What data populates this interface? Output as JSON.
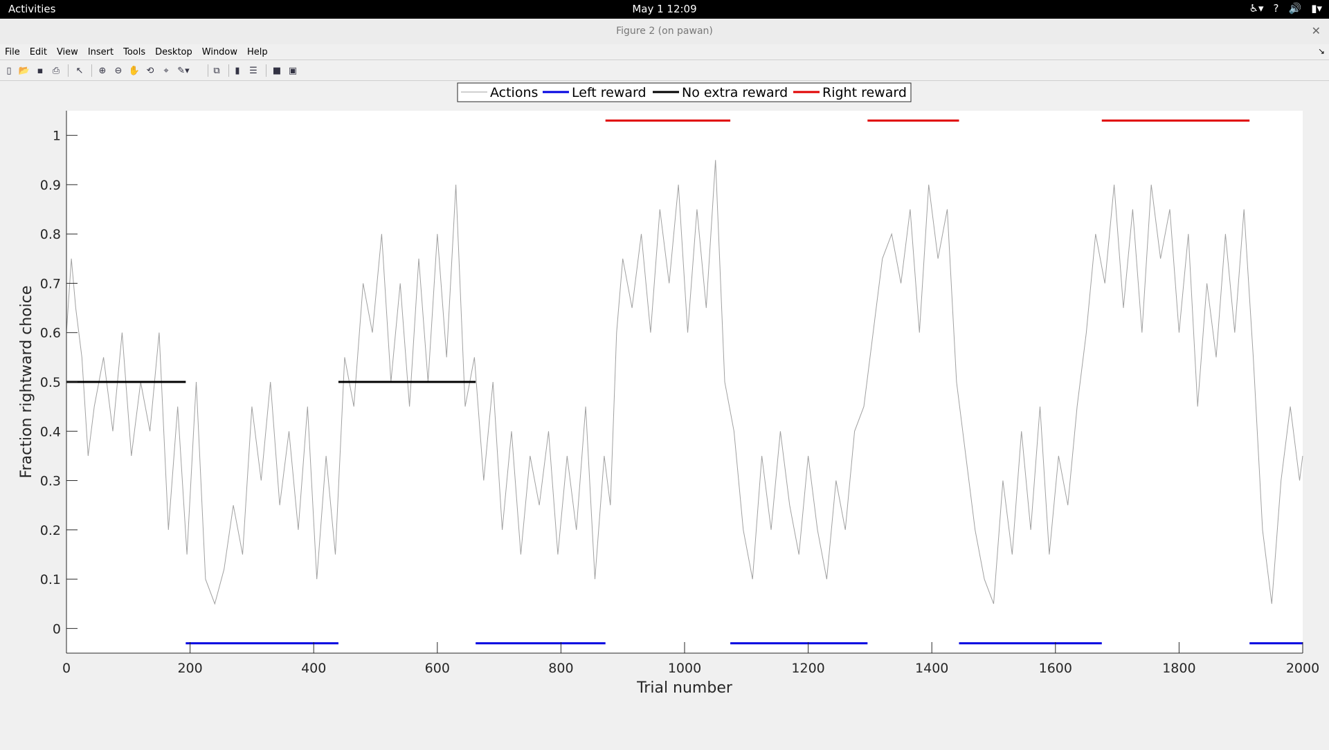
{
  "topbar": {
    "activities": "Activities",
    "clock": "May 1  12:09"
  },
  "window": {
    "title": "Figure 2 (on pawan)"
  },
  "menu": [
    "File",
    "Edit",
    "View",
    "Insert",
    "Tools",
    "Desktop",
    "Window",
    "Help"
  ],
  "toolbar_icons": [
    "new-figure-icon",
    "open-file-icon",
    "save-icon",
    "print-icon",
    "edit-plot-icon",
    "zoom-in-icon",
    "zoom-out-icon",
    "pan-icon",
    "rotate-3d-icon",
    "data-cursor-icon",
    "brush-icon",
    "link-plot-icon",
    "colorbar-icon",
    "legend-icon",
    "hide-plot-tools-icon",
    "show-plot-tools-icon"
  ],
  "chart_data": {
    "type": "line",
    "xlabel": "Trial number",
    "ylabel": "Fraction rightward choice",
    "xlim": [
      0,
      2000
    ],
    "ylim": [
      -0.05,
      1.05
    ],
    "xticks": [
      0,
      200,
      400,
      600,
      800,
      1000,
      1200,
      1400,
      1600,
      1800,
      2000
    ],
    "yticks": [
      0,
      0.1,
      0.2,
      0.3,
      0.4,
      0.5,
      0.6,
      0.7,
      0.8,
      0.9,
      1
    ],
    "ytick_labels": [
      "0",
      "0.1",
      "0.2",
      "0.3",
      "0.4",
      "0.5",
      "0.6",
      "0.7",
      "0.8",
      "0.9",
      "1"
    ],
    "grid": false,
    "legend": {
      "position": "top-center",
      "entries": [
        "Actions",
        "Left reward",
        "No extra reward",
        "Right reward"
      ]
    },
    "colors": {
      "actions": "#a0a0a0",
      "left": "#0000e0",
      "none": "#000000",
      "right": "#e00000"
    },
    "series": [
      {
        "name": "Actions",
        "x": [
          0,
          8,
          15,
          25,
          35,
          45,
          60,
          75,
          90,
          105,
          120,
          135,
          150,
          165,
          180,
          195,
          210,
          225,
          240,
          255,
          270,
          285,
          300,
          315,
          330,
          345,
          360,
          375,
          390,
          405,
          420,
          435,
          450,
          465,
          480,
          495,
          510,
          525,
          540,
          555,
          570,
          585,
          600,
          615,
          630,
          645,
          660,
          675,
          690,
          705,
          720,
          735,
          750,
          765,
          780,
          795,
          810,
          825,
          840,
          855,
          870,
          880,
          890,
          900,
          915,
          930,
          945,
          960,
          975,
          990,
          1005,
          1020,
          1035,
          1050,
          1065,
          1080,
          1095,
          1110,
          1125,
          1140,
          1155,
          1170,
          1185,
          1200,
          1215,
          1230,
          1245,
          1260,
          1275,
          1290,
          1305,
          1320,
          1335,
          1350,
          1365,
          1380,
          1395,
          1410,
          1425,
          1440,
          1455,
          1470,
          1485,
          1500,
          1515,
          1530,
          1545,
          1560,
          1575,
          1590,
          1605,
          1620,
          1635,
          1650,
          1665,
          1680,
          1695,
          1710,
          1725,
          1740,
          1755,
          1770,
          1785,
          1800,
          1815,
          1830,
          1845,
          1860,
          1875,
          1890,
          1905,
          1920,
          1935,
          1950,
          1965,
          1980,
          1995,
          2000
        ],
        "y": [
          0.6,
          0.75,
          0.65,
          0.55,
          0.35,
          0.45,
          0.55,
          0.4,
          0.6,
          0.35,
          0.5,
          0.4,
          0.6,
          0.2,
          0.45,
          0.15,
          0.5,
          0.1,
          0.05,
          0.12,
          0.25,
          0.15,
          0.45,
          0.3,
          0.5,
          0.25,
          0.4,
          0.2,
          0.45,
          0.1,
          0.35,
          0.15,
          0.55,
          0.45,
          0.7,
          0.6,
          0.8,
          0.5,
          0.7,
          0.45,
          0.75,
          0.5,
          0.8,
          0.55,
          0.9,
          0.45,
          0.55,
          0.3,
          0.5,
          0.2,
          0.4,
          0.15,
          0.35,
          0.25,
          0.4,
          0.15,
          0.35,
          0.2,
          0.45,
          0.1,
          0.35,
          0.25,
          0.6,
          0.75,
          0.65,
          0.8,
          0.6,
          0.85,
          0.7,
          0.9,
          0.6,
          0.85,
          0.65,
          0.95,
          0.5,
          0.4,
          0.2,
          0.1,
          0.35,
          0.2,
          0.4,
          0.25,
          0.15,
          0.35,
          0.2,
          0.1,
          0.3,
          0.2,
          0.4,
          0.45,
          0.6,
          0.75,
          0.8,
          0.7,
          0.85,
          0.6,
          0.9,
          0.75,
          0.85,
          0.5,
          0.35,
          0.2,
          0.1,
          0.05,
          0.3,
          0.15,
          0.4,
          0.2,
          0.45,
          0.15,
          0.35,
          0.25,
          0.45,
          0.6,
          0.8,
          0.7,
          0.9,
          0.65,
          0.85,
          0.6,
          0.9,
          0.75,
          0.85,
          0.6,
          0.8,
          0.45,
          0.7,
          0.55,
          0.8,
          0.6,
          0.85,
          0.55,
          0.2,
          0.05,
          0.3,
          0.45,
          0.3,
          0.35
        ]
      },
      {
        "name": "Left reward",
        "segments": [
          [
            193,
            440
          ],
          [
            662,
            872
          ],
          [
            1074,
            1296
          ],
          [
            1444,
            1675
          ],
          [
            1914,
            2000
          ]
        ],
        "y": -0.03
      },
      {
        "name": "No extra reward",
        "segments": [
          [
            0,
            193
          ],
          [
            440,
            662
          ]
        ],
        "y": 0.5
      },
      {
        "name": "Right reward",
        "segments": [
          [
            872,
            1074
          ],
          [
            1296,
            1444
          ],
          [
            1675,
            1914
          ]
        ],
        "y": 1.03
      }
    ]
  }
}
